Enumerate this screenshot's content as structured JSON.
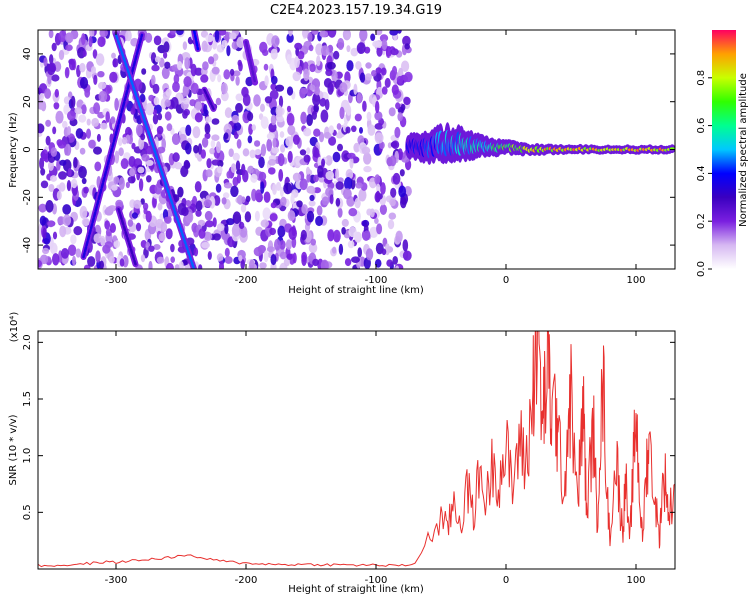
{
  "title": "C2E4.2023.157.19.34.G19",
  "colors": {
    "axis": "#000000",
    "snr_line": "#e8302e",
    "background": "#ffffff"
  },
  "chart_data": [
    {
      "type": "heatmap",
      "xlabel": "Height of straight line (km)",
      "ylabel": "Frequency (Hz)",
      "xlim": [
        -360,
        130
      ],
      "ylim": [
        -50,
        50
      ],
      "xticks": [
        -300,
        -200,
        -100,
        0,
        100
      ],
      "yticks": [
        -40,
        -20,
        0,
        20,
        40
      ],
      "grid": false,
      "colorbar": {
        "label": "Normalized spectral amplitude",
        "range": [
          0,
          1
        ],
        "ticks": [
          "0.0",
          "0.2",
          "0.4",
          "0.6",
          "0.8"
        ],
        "colormap": [
          "#ffffff",
          "#d6b8f2",
          "#7a1fe0",
          "#3a00c0",
          "#0000ff",
          "#00c8ff",
          "#00ff90",
          "#30ff00",
          "#c8ff00",
          "#ffa000",
          "#ff0060"
        ]
      },
      "noise_region_x": [
        -360,
        -75
      ],
      "traces": [
        {
          "x": [
            -325,
            -280
          ],
          "y": [
            -45,
            48
          ],
          "amplitude": 0.35
        },
        {
          "x": [
            -300,
            -240
          ],
          "y": [
            48,
            -50
          ],
          "amplitude": 0.45
        },
        {
          "x": [
            -298,
            -285
          ],
          "y": [
            -25,
            -48
          ],
          "amplitude": 0.3
        },
        {
          "x": [
            -240,
            -237
          ],
          "y": [
            50,
            42
          ],
          "amplitude": 0.4
        },
        {
          "x": [
            -232,
            -225
          ],
          "y": [
            25,
            17
          ],
          "amplitude": 0.3
        },
        {
          "x": [
            -200,
            -193
          ],
          "y": [
            45,
            28
          ],
          "amplitude": 0.25
        }
      ],
      "ridge": {
        "x": [
          -75,
          -60,
          -45,
          -30,
          -15,
          0,
          15,
          40,
          70,
          100,
          130
        ],
        "y": [
          2,
          1,
          3,
          2,
          1,
          1,
          0,
          0,
          0,
          0,
          0
        ],
        "halfwidth_hz": [
          4,
          5,
          6,
          5,
          3,
          2,
          1.5,
          1.2,
          1,
          1,
          1
        ],
        "amplitude": [
          0.4,
          0.45,
          0.5,
          0.55,
          0.6,
          0.75,
          0.85,
          0.9,
          0.92,
          0.92,
          0.9
        ]
      }
    },
    {
      "type": "line",
      "xlabel": "Height of straight line (km)",
      "ylabel": "SNR (10 * v/v)",
      "y_multiplier": "(x10⁴)",
      "xlim": [
        -360,
        130
      ],
      "ylim": [
        0,
        2.1
      ],
      "xticks": [
        -300,
        -200,
        -100,
        0,
        100
      ],
      "yticks": [
        "0.5",
        "1.0",
        "1.5",
        "2.0"
      ],
      "grid": false,
      "series": [
        {
          "color": "#e8302e",
          "x": [
            -360,
            -350,
            -340,
            -330,
            -320,
            -310,
            -300,
            -290,
            -280,
            -270,
            -260,
            -250,
            -240,
            -230,
            -220,
            -210,
            -200,
            -190,
            -180,
            -170,
            -160,
            -150,
            -140,
            -130,
            -120,
            -110,
            -100,
            -90,
            -80,
            -70,
            -60,
            -50,
            -45,
            -40,
            -35,
            -30,
            -25,
            -20,
            -15,
            -10,
            -5,
            0,
            5,
            10,
            15,
            20,
            22,
            25,
            28,
            30,
            33,
            35,
            38,
            40,
            45,
            48,
            50,
            55,
            58,
            60,
            62,
            65,
            68,
            70,
            72,
            75,
            78,
            80,
            85,
            88,
            90,
            92,
            95,
            98,
            100,
            103,
            105,
            108,
            110,
            115,
            118,
            120,
            123,
            125,
            130
          ],
          "y": [
            0.03,
            0.03,
            0.035,
            0.04,
            0.05,
            0.06,
            0.06,
            0.07,
            0.08,
            0.09,
            0.1,
            0.12,
            0.11,
            0.09,
            0.07,
            0.06,
            0.05,
            0.05,
            0.04,
            0.04,
            0.04,
            0.04,
            0.04,
            0.035,
            0.035,
            0.035,
            0.035,
            0.03,
            0.03,
            0.05,
            0.25,
            0.45,
            0.35,
            0.6,
            0.4,
            0.7,
            0.5,
            0.85,
            0.6,
            0.95,
            0.8,
            1.05,
            0.7,
            1.15,
            0.9,
            1.4,
            1.9,
            2.05,
            1.2,
            1.6,
            1.75,
            1.3,
            1.45,
            1.1,
            0.7,
            1.35,
            1.5,
            0.55,
            1.2,
            1.35,
            0.45,
            1.0,
            1.2,
            0.3,
            1.1,
            1.6,
            0.6,
            0.3,
            1.0,
            0.5,
            0.35,
            0.8,
            0.2,
            0.9,
            1.4,
            0.6,
            0.25,
            0.9,
            1.1,
            0.6,
            0.25,
            0.7,
            0.8,
            0.45,
            0.75
          ]
        }
      ]
    }
  ]
}
